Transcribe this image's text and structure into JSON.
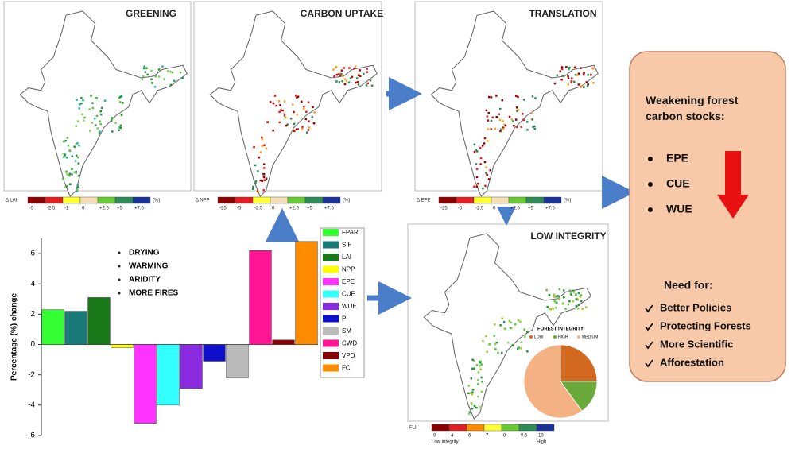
{
  "panels": [
    {
      "title": "GREENING",
      "colorbar_label": "Δ LAI",
      "colorbar_ticks": [
        "-5",
        "-2.5",
        "-1",
        "0",
        "+2.5",
        "+5",
        "+7.5"
      ],
      "unit": "(%)",
      "palette": [
        "#1a9a1a",
        "#55c43a",
        "#7dd35a",
        "#2e8b57",
        "#20b2aa"
      ]
    },
    {
      "title": "CARBON UPTAKE",
      "colorbar_label": "Δ NPP",
      "colorbar_ticks": [
        "-25",
        "-5",
        "-2.5",
        "0",
        "+2.5",
        "+5",
        "+7.5"
      ],
      "unit": "(%)",
      "palette": [
        "#c00000",
        "#e82020",
        "#f5a623",
        "#2e8b57",
        "#8b0000"
      ]
    },
    {
      "title": "TRANSLATION",
      "colorbar_label": "Δ EPE",
      "colorbar_ticks": [
        "-25",
        "-5",
        "-2.5",
        "0",
        "+2.5",
        "+5",
        "+7.5"
      ],
      "unit": "(%)",
      "palette": [
        "#c00000",
        "#e82020",
        "#8b0000",
        "#f5a623",
        "#2e8b57"
      ]
    },
    {
      "title": "LOW INTEGRITY",
      "colorbar_label": "FLII",
      "colorbar_ticks": [
        "0",
        "4",
        "6",
        "7",
        "8",
        "9.5",
        "10"
      ],
      "colorbar_end_labels": [
        "Low integrity",
        "High"
      ],
      "palette": [
        "#1a9a1a",
        "#55c43a",
        "#2e8b57",
        "#7dd35a",
        "#9acd32"
      ]
    }
  ],
  "drivers": [
    "DRYING",
    "WARMING",
    "ARIDITY",
    "MORE FIRES"
  ],
  "summary": {
    "heading": "Weakening forest carbon stocks:",
    "items": [
      "EPE",
      "CUE",
      "WUE"
    ],
    "need_heading": "Need for:",
    "needs": [
      "Better Policies",
      "Protecting Forests",
      "More Scientific",
      "Afforestation"
    ]
  },
  "chart_data": [
    {
      "type": "bar",
      "y_label": "Percentage (%) change",
      "categories": [
        "FPAR",
        "SIF",
        "LAI",
        "NPP",
        "EPE",
        "CUE",
        "WUE",
        "P",
        "SM",
        "CWD",
        "VPD",
        "FC"
      ],
      "values": [
        2.3,
        2.2,
        3.1,
        -0.2,
        -5.2,
        -4.0,
        -2.9,
        -1.1,
        -2.2,
        6.2,
        0.3,
        6.8
      ],
      "colors": [
        "#33ff33",
        "#1a7a7a",
        "#1a7a1a",
        "#ffff00",
        "#ff33ff",
        "#33ffff",
        "#8a2be2",
        "#1010cc",
        "#bbbbbb",
        "#ff1493",
        "#8b0000",
        "#ff8c00"
      ],
      "ylim": [
        -6,
        7
      ],
      "yticks": [
        -6,
        -4,
        -2,
        0,
        2,
        4,
        6
      ]
    },
    {
      "type": "pie",
      "title": "FOREST INTEGRITY",
      "categories": [
        "LOW",
        "HIGH",
        "MEDIUM"
      ],
      "values": [
        25,
        15,
        60
      ],
      "colors": [
        "#d2691e",
        "#6aaa3a",
        "#f4b183"
      ]
    }
  ]
}
